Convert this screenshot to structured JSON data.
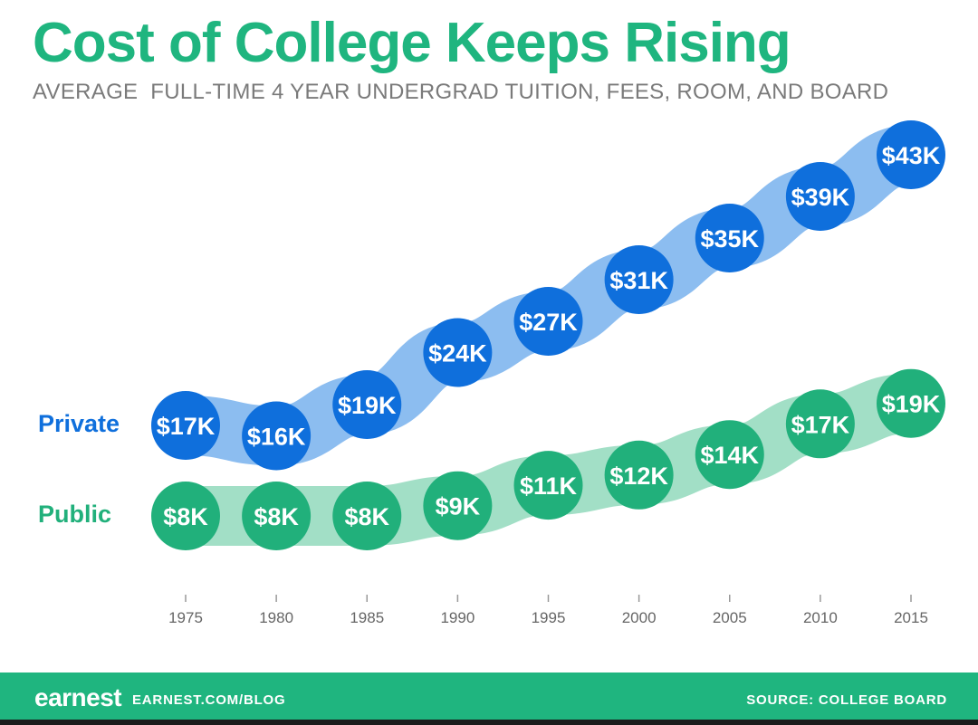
{
  "header": {
    "title": "Cost of College Keeps Rising",
    "subtitle": "AVERAGE  FULL-TIME 4 YEAR UNDERGRAD TUITION, FEES, ROOM, AND BOARD"
  },
  "colors": {
    "title": "#1fb57f",
    "private": "#0f6fdc",
    "private_band": "#7fb6ee",
    "public": "#21b07b",
    "public_band": "#98dcc0",
    "axis_text": "#666666",
    "footer": "#1fb57f"
  },
  "footer": {
    "logo": "earnest",
    "site": "EARNEST.COM/BLOG",
    "source": "SOURCE: COLLEGE BOARD"
  },
  "chart_data": {
    "type": "line",
    "x": [
      1975,
      1980,
      1985,
      1990,
      1995,
      2000,
      2005,
      2010,
      2015
    ],
    "x_tick_labels": [
      "1975",
      "1980",
      "1985",
      "1990",
      "1995",
      "2000",
      "2005",
      "2010",
      "2015"
    ],
    "series": [
      {
        "name": "Private",
        "values": [
          17,
          16,
          19,
          24,
          27,
          31,
          35,
          39,
          43
        ],
        "labels": [
          "$17K",
          "$16K",
          "$19K",
          "$24K",
          "$27K",
          "$31K",
          "$35K",
          "$39K",
          "$43K"
        ]
      },
      {
        "name": "Public",
        "values": [
          8,
          8,
          8,
          9,
          11,
          12,
          14,
          17,
          19
        ],
        "labels": [
          "$8K",
          "$8K",
          "$8K",
          "$9K",
          "$11K",
          "$12K",
          "$14K",
          "$17K",
          "$19K"
        ]
      }
    ],
    "value_unit": "thousands USD",
    "grid": false,
    "legend": "left, inline with series"
  }
}
